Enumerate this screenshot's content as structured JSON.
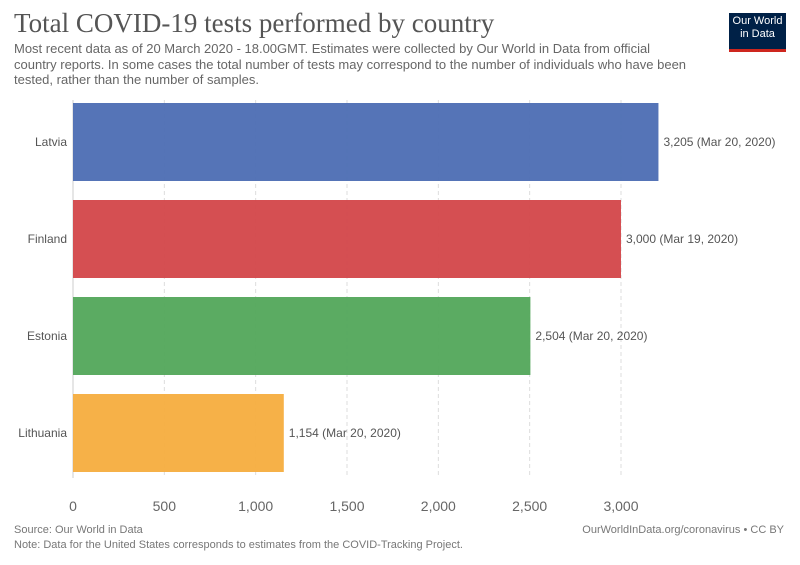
{
  "header": {
    "title": "Total COVID-19 tests performed by country",
    "subtitle": "Most recent data as of 20 March 2020 - 18.00GMT. Estimates were collected by Our World in Data from official country reports. In some cases the total number of tests may correspond to the number of individuals who have been tested, rather than the number of samples.",
    "logo_line1": "Our World",
    "logo_line2": "in Data"
  },
  "footer": {
    "source": "Source: Our World in Data",
    "note": "Note: Data for the United States corresponds to estimates from the COVID-Tracking Project.",
    "license": "OurWorldInData.org/coronavirus • CC BY"
  },
  "chart_data": {
    "type": "bar",
    "orientation": "horizontal",
    "categories": [
      "Latvia",
      "Finland",
      "Estonia",
      "Lithuania"
    ],
    "values": [
      3205,
      3000,
      2504,
      1154
    ],
    "data_labels": [
      "3,205 (Mar 20, 2020)",
      "3,000 (Mar 19, 2020)",
      "2,504 (Mar 20, 2020)",
      "1,154 (Mar 20, 2020)"
    ],
    "colors": [
      "#4c6db3",
      "#d34649",
      "#52a75a",
      "#f6ad3e"
    ],
    "xlim": [
      0,
      3205
    ],
    "xticks": [
      0,
      500,
      1000,
      1500,
      2000,
      2500,
      3000
    ],
    "xtick_labels": [
      "0",
      "500",
      "1,000",
      "1,500",
      "2,000",
      "2,500",
      "3,000"
    ],
    "grid": "vertical dashed",
    "legend": "none"
  }
}
